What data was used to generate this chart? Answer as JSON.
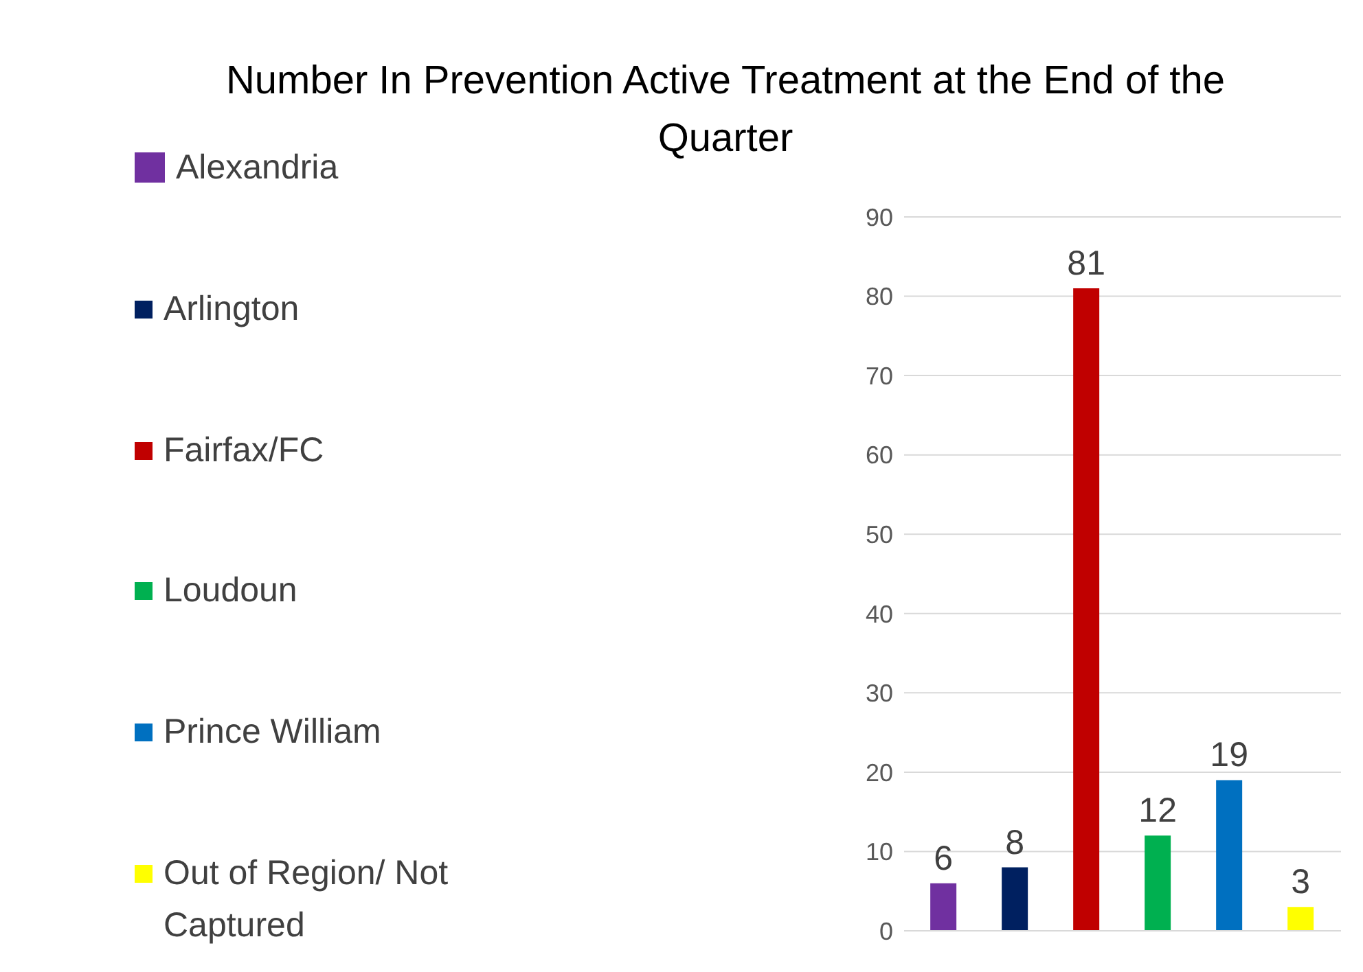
{
  "chart_data": {
    "type": "bar",
    "title": "Number In Prevention Active Treatment at the End of the Quarter",
    "categories": [
      null
    ],
    "series": [
      {
        "name": "Alexandria",
        "color": "#7030a0",
        "values": [
          6
        ]
      },
      {
        "name": "Arlington",
        "color": "#002060",
        "values": [
          8
        ]
      },
      {
        "name": "Fairfax/FC",
        "color": "#c00000",
        "values": [
          81
        ]
      },
      {
        "name": "Loudoun",
        "color": "#00b050",
        "values": [
          12
        ]
      },
      {
        "name": "Prince William",
        "color": "#0070c0",
        "values": [
          19
        ]
      },
      {
        "name": "Out of Region/ Not Captured",
        "color": "#ffff00",
        "values": [
          3
        ]
      }
    ],
    "ylim": [
      0,
      90
    ],
    "yticks": [
      0,
      10,
      20,
      30,
      40,
      50,
      60,
      70,
      80,
      90
    ],
    "grid": "y",
    "legend": "left",
    "data_labels": true
  }
}
